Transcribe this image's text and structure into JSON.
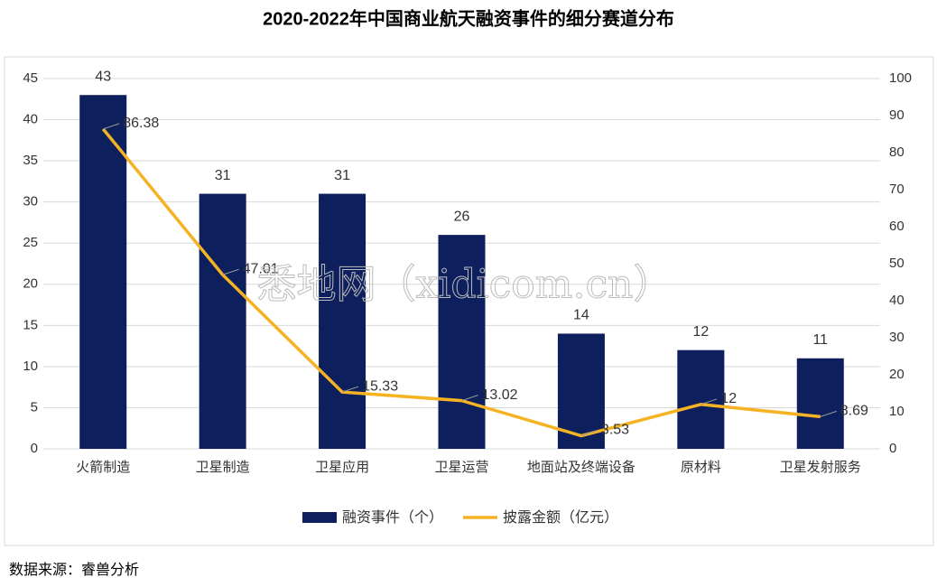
{
  "chart_data": {
    "type": "bar",
    "title": "2020-2022年中国商业航天融资事件的细分赛道分布",
    "categories": [
      "火箭制造",
      "卫星制造",
      "卫星应用",
      "卫星运营",
      "地面站及终端设备",
      "原材料",
      "卫星发射服务"
    ],
    "series": [
      {
        "name": "融资事件（个）",
        "color": "#0d1f5c",
        "values": [
          43,
          31,
          31,
          26,
          14,
          12,
          11
        ]
      },
      {
        "name": "披露金额（亿元）",
        "color": "#f5b324",
        "type": "line",
        "axis": "y2",
        "values": [
          86.38,
          47.01,
          15.33,
          13.02,
          3.53,
          12,
          8.69
        ]
      }
    ],
    "ylim": [
      0,
      45
    ],
    "yticks": [
      0,
      5,
      10,
      15,
      20,
      25,
      30,
      35,
      40,
      45
    ],
    "y2lim": [
      0,
      100
    ],
    "y2ticks": [
      0,
      10,
      20,
      30,
      40,
      50,
      60,
      70,
      80,
      90,
      100
    ],
    "grid": true
  },
  "watermark": "悉地网（xidicom.cn）",
  "source": "数据来源：睿兽分析"
}
